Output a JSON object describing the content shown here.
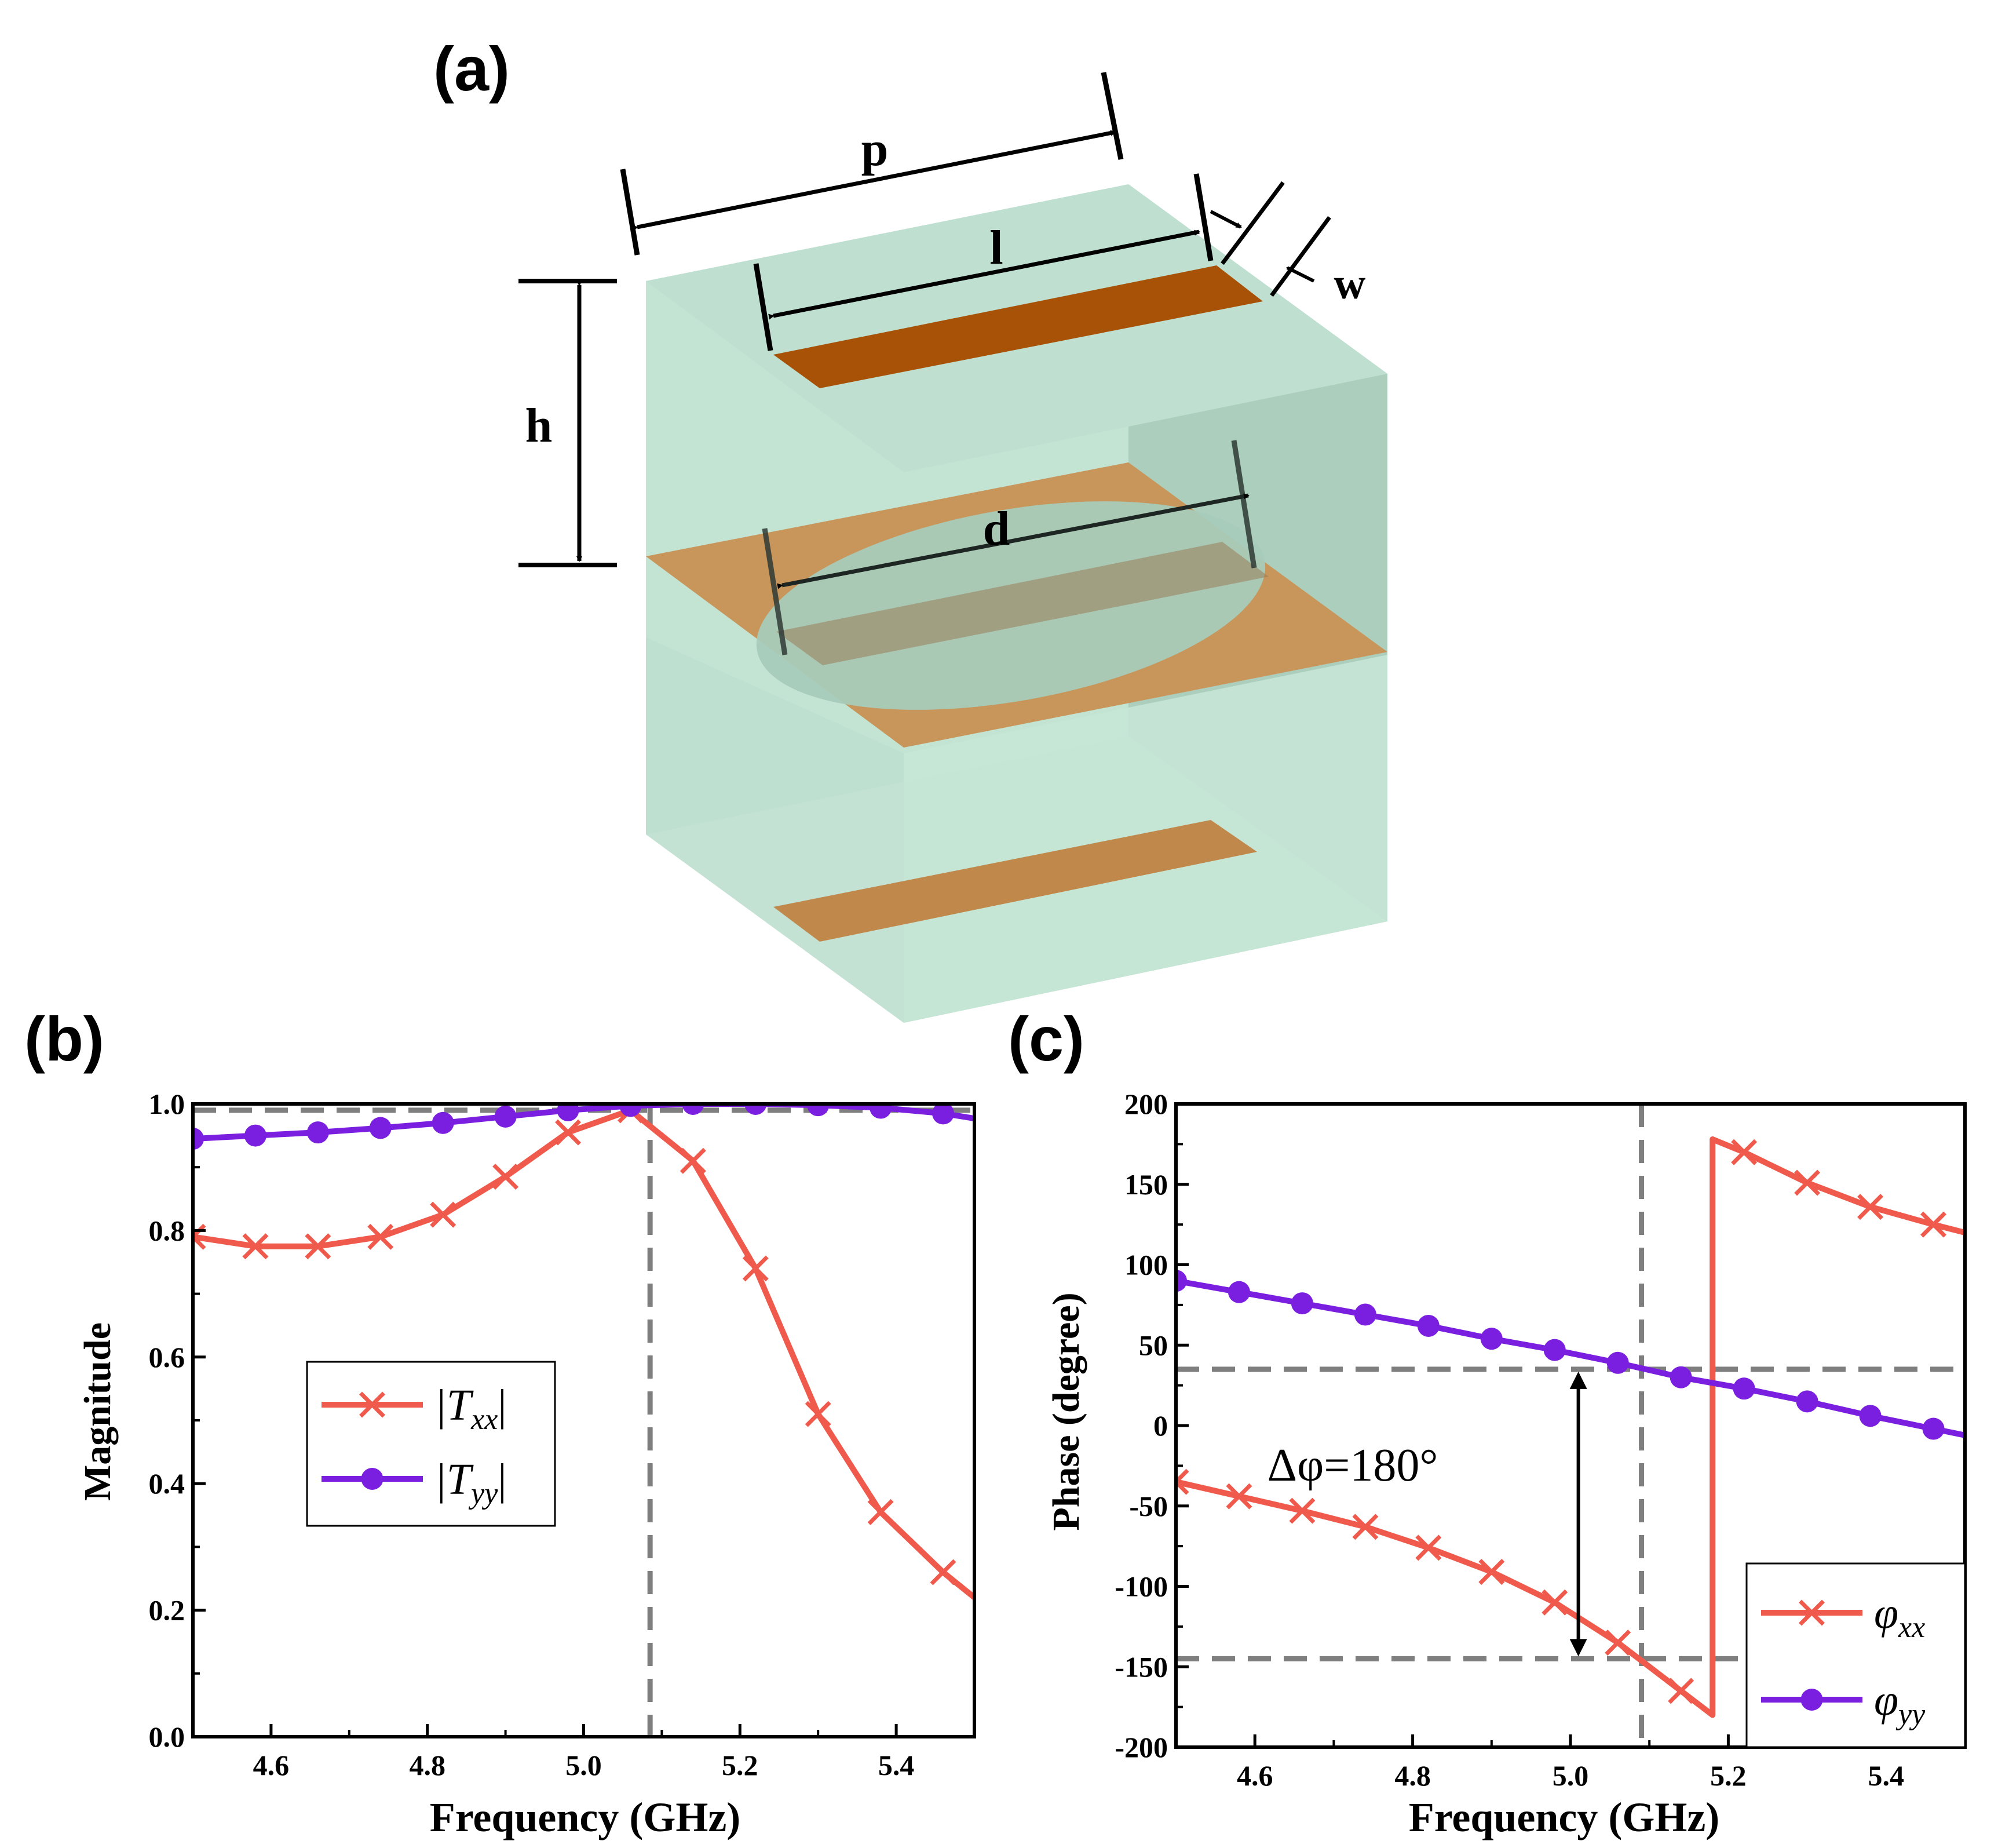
{
  "panels": {
    "a": "(a)",
    "b": "(b)",
    "c": "(c)"
  },
  "schematic": {
    "dimension_labels": {
      "p": "p",
      "l": "l",
      "w": "w",
      "h": "h",
      "d": "d"
    },
    "colors": {
      "substrate": "#bfe0d0",
      "copper": "#a85208",
      "copper_light": "#c8955a",
      "line": "#000000"
    }
  },
  "chart_data": [
    {
      "type": "line",
      "panel": "b",
      "xlabel": "Frequency (GHz)",
      "ylabel": "Magnitude",
      "xlim": [
        4.5,
        5.5
      ],
      "ylim": [
        0.0,
        1.0
      ],
      "xticks": [
        "4.6",
        "4.8",
        "5.0",
        "5.2",
        "5.4"
      ],
      "xtick_values": [
        4.6,
        4.8,
        5.0,
        5.2,
        5.4
      ],
      "yticks": [
        "0.0",
        "0.2",
        "0.4",
        "0.6",
        "0.8",
        "1.0"
      ],
      "ytick_values": [
        0.0,
        0.2,
        0.4,
        0.6,
        0.8,
        1.0
      ],
      "grid": false,
      "legend_placement": "center-left",
      "reference_lines": {
        "vertical_x": 5.085,
        "horizontal_y": 0.99
      },
      "series": [
        {
          "name_base": "|T",
          "name_sub": "xx",
          "name_end": "|",
          "color": "#f05a4c",
          "marker": "x",
          "x": [
            4.5,
            4.58,
            4.66,
            4.74,
            4.82,
            4.9,
            4.98,
            5.06,
            5.14,
            5.22,
            5.3,
            5.38,
            5.46,
            5.5
          ],
          "y": [
            0.79,
            0.775,
            0.775,
            0.79,
            0.825,
            0.885,
            0.955,
            0.99,
            0.91,
            0.74,
            0.51,
            0.355,
            0.26,
            0.22
          ],
          "marker_x": [
            4.5,
            4.58,
            4.66,
            4.74,
            4.82,
            4.9,
            4.98,
            5.06,
            5.14,
            5.22,
            5.3,
            5.38,
            5.46
          ]
        },
        {
          "name_base": "|T",
          "name_sub": "yy",
          "name_end": "|",
          "color": "#7a1ee0",
          "marker": "circle",
          "x": [
            4.5,
            4.58,
            4.66,
            4.74,
            4.82,
            4.9,
            4.98,
            5.06,
            5.14,
            5.22,
            5.3,
            5.38,
            5.46,
            5.5
          ],
          "y": [
            0.945,
            0.95,
            0.955,
            0.962,
            0.97,
            0.98,
            0.99,
            0.997,
            1.0,
            1.0,
            0.998,
            0.994,
            0.985,
            0.977
          ],
          "marker_x": [
            4.5,
            4.58,
            4.66,
            4.74,
            4.82,
            4.9,
            4.98,
            5.06,
            5.14,
            5.22,
            5.3,
            5.38,
            5.46
          ]
        }
      ]
    },
    {
      "type": "line",
      "panel": "c",
      "xlabel": "Frequency (GHz)",
      "ylabel": "Phase (degree)",
      "xlim": [
        4.5,
        5.5
      ],
      "ylim": [
        -200,
        200
      ],
      "xticks": [
        "4.6",
        "4.8",
        "5.0",
        "5.2",
        "5.4"
      ],
      "xtick_values": [
        4.6,
        4.8,
        5.0,
        5.2,
        5.4
      ],
      "yticks": [
        "-200",
        "-150",
        "-100",
        "-50",
        "0",
        "50",
        "100",
        "150",
        "200"
      ],
      "ytick_values": [
        -200,
        -150,
        -100,
        -50,
        0,
        50,
        100,
        150,
        200
      ],
      "grid": false,
      "legend_placement": "bottom-right",
      "annotation": "Δφ=180°",
      "reference_lines": {
        "vertical_x": 5.09,
        "horizontal_y": [
          35,
          -145
        ]
      },
      "series": [
        {
          "name_base": "φ",
          "name_sub": "xx",
          "color": "#f05a4c",
          "marker": "x",
          "x": [
            4.5,
            4.58,
            4.66,
            4.74,
            4.82,
            4.9,
            4.98,
            5.06,
            5.14,
            5.18,
            5.18,
            5.22,
            5.3,
            5.38,
            5.46,
            5.5
          ],
          "y": [
            -35,
            -44,
            -53,
            -63,
            -76,
            -91,
            -110,
            -135,
            -165,
            -180,
            178,
            170,
            151,
            136,
            125,
            120
          ],
          "marker_x": [
            4.5,
            4.58,
            4.66,
            4.74,
            4.82,
            4.9,
            4.98,
            5.06,
            5.14,
            5.22,
            5.3,
            5.38,
            5.46
          ]
        },
        {
          "name_base": "φ",
          "name_sub": "yy",
          "color": "#7a1ee0",
          "marker": "circle",
          "x": [
            4.5,
            4.58,
            4.66,
            4.74,
            4.82,
            4.9,
            4.98,
            5.06,
            5.14,
            5.22,
            5.3,
            5.38,
            5.46,
            5.5
          ],
          "y": [
            90,
            83,
            76,
            69,
            62,
            54,
            47,
            39,
            30,
            23,
            15,
            6,
            -2,
            -6
          ],
          "marker_x": [
            4.5,
            4.58,
            4.66,
            4.74,
            4.82,
            4.9,
            4.98,
            5.06,
            5.14,
            5.22,
            5.3,
            5.38,
            5.46
          ]
        }
      ]
    }
  ]
}
